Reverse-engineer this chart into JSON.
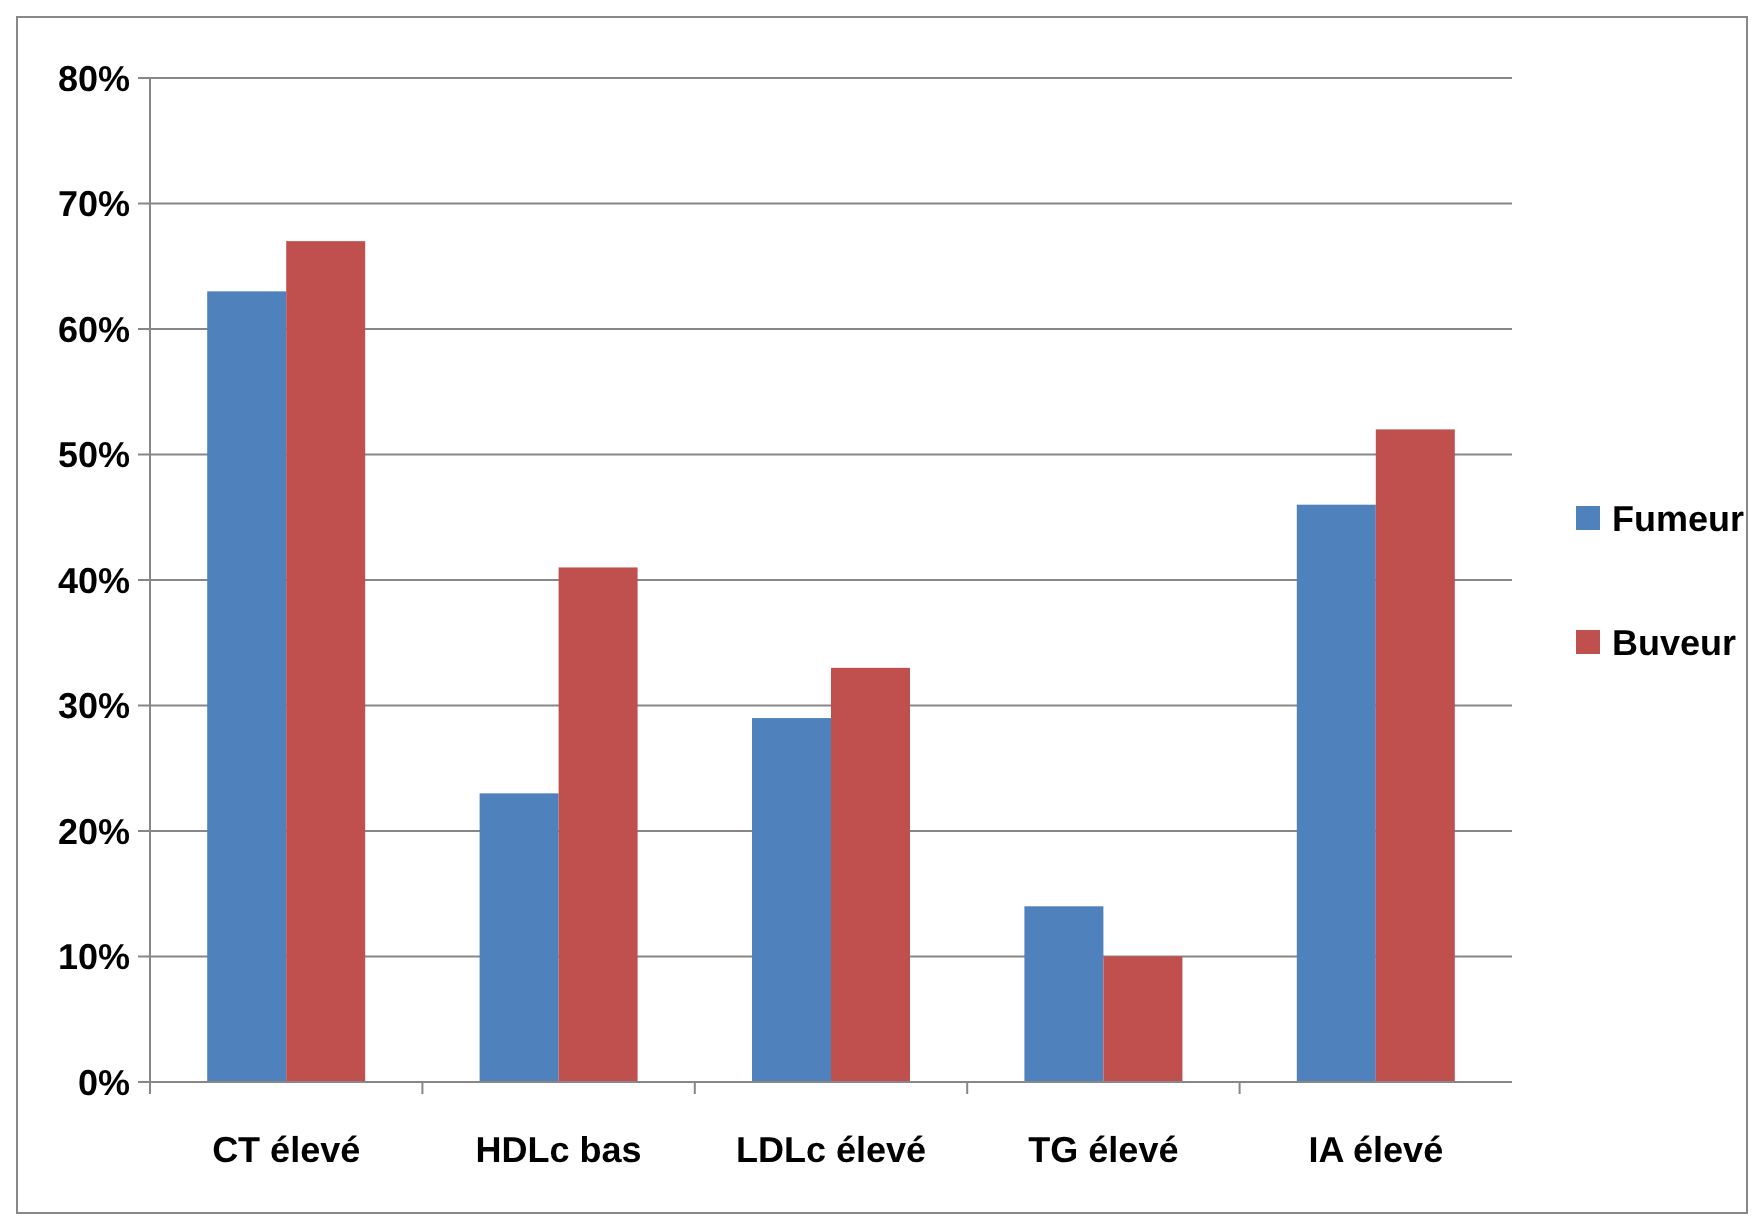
{
  "chart_data": {
    "type": "bar",
    "categories": [
      "CT élevé",
      "HDLc bas",
      "LDLc élevé",
      "TG élevé",
      "IA élevé"
    ],
    "series": [
      {
        "name": "Fumeur",
        "color": "#4f81bd",
        "values": [
          63,
          23,
          29,
          14,
          46
        ]
      },
      {
        "name": "Buveur",
        "color": "#c0504d",
        "values": [
          67,
          41,
          33,
          10,
          52
        ]
      }
    ],
    "ylim": [
      0,
      80
    ],
    "yticks": [
      {
        "value": 0,
        "label": "0%"
      },
      {
        "value": 10,
        "label": "10%"
      },
      {
        "value": 20,
        "label": "20%"
      },
      {
        "value": 30,
        "label": "30%"
      },
      {
        "value": 40,
        "label": "40%"
      },
      {
        "value": 50,
        "label": "50%"
      },
      {
        "value": 60,
        "label": "60%"
      },
      {
        "value": 70,
        "label": "70%"
      },
      {
        "value": 80,
        "label": "80%"
      }
    ],
    "grid": "y",
    "legend": "right"
  }
}
